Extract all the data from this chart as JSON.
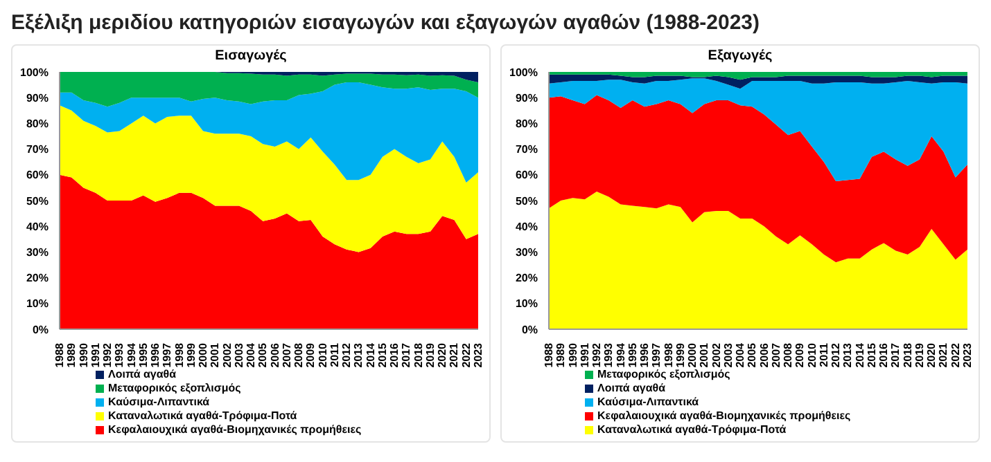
{
  "chart_data": [
    {
      "type": "area",
      "title": "Εξέλιξη μεριδίου κατηγοριών εισαγωγών και εξαγωγών αγαθών (1988-2023)",
      "subtitle": "Εισαγωγές",
      "stacked": true,
      "legend": "bottom",
      "categories": [
        "1988",
        "1989",
        "1990",
        "1991",
        "1992",
        "1993",
        "1994",
        "1995",
        "1996",
        "1997",
        "1998",
        "1999",
        "2000",
        "2001",
        "2002",
        "2003",
        "2004",
        "2005",
        "2006",
        "2007",
        "2008",
        "2009",
        "2010",
        "2011",
        "2012",
        "2013",
        "2014",
        "2015",
        "2016",
        "2017",
        "2018",
        "2019",
        "2020",
        "2021",
        "2022",
        "2023"
      ],
      "ylim": [
        0,
        100
      ],
      "yticks": [
        {
          "value": 0,
          "label": "0%"
        },
        {
          "value": 10,
          "label": "10%"
        },
        {
          "value": 20,
          "label": "20%"
        },
        {
          "value": 30,
          "label": "30%"
        },
        {
          "value": 40,
          "label": "40%"
        },
        {
          "value": 50,
          "label": "50%"
        },
        {
          "value": 60,
          "label": "60%"
        },
        {
          "value": 70,
          "label": "70%"
        },
        {
          "value": 80,
          "label": "80%"
        },
        {
          "value": 90,
          "label": "90%"
        },
        {
          "value": 100,
          "label": "100%"
        }
      ],
      "series": [
        {
          "name": "Κεφαλαιουχικά αγαθά-Βιομηχανικές προμήθειες",
          "color": "#ff0000",
          "values": [
            60,
            59,
            55,
            53,
            50,
            50,
            50,
            52,
            49.5,
            51,
            53,
            53,
            51,
            48,
            48,
            48,
            46,
            42,
            43,
            45,
            42,
            42.5,
            36,
            33,
            31,
            30,
            31.5,
            36,
            38,
            37,
            37,
            38,
            44,
            42.5,
            35,
            37
          ]
        },
        {
          "name": "Καταναλωτικά αγαθά-Τρόφιμα-Ποτά",
          "color": "#ffff00",
          "values": [
            27,
            26,
            26,
            26,
            26.5,
            27,
            30,
            31,
            30.5,
            31.5,
            30,
            30,
            26,
            28,
            28,
            28,
            29,
            30,
            28,
            28,
            28,
            32,
            33,
            31,
            27,
            28,
            28.5,
            31,
            32,
            30,
            27.5,
            28,
            29,
            24.5,
            22,
            24
          ]
        },
        {
          "name": "Καύσιμα-Λιπαντικά",
          "color": "#00b0f0",
          "values": [
            5,
            7,
            8,
            9,
            10,
            11,
            10,
            7,
            10,
            7.5,
            7,
            5.5,
            12.5,
            14,
            13,
            12.5,
            12.5,
            16.5,
            18,
            16,
            21,
            17,
            23.5,
            31,
            38,
            38,
            35,
            27,
            23.5,
            26.5,
            29.5,
            27,
            20.5,
            26.5,
            35.5,
            29
          ]
        },
        {
          "name": "Μεταφορικός εξοπλισμός",
          "color": "#00b050",
          "values": [
            8,
            8,
            11,
            12,
            13.5,
            12,
            10,
            10,
            10,
            10,
            10,
            11.5,
            10.5,
            10,
            10.5,
            11,
            11.8,
            10.5,
            10,
            9.5,
            8,
            7.5,
            6,
            4,
            3.3,
            3.3,
            4.3,
            5,
            5.5,
            5.2,
            5,
            5.5,
            5.2,
            5,
            4.5,
            6
          ]
        },
        {
          "name": "Λοιπά αγαθά",
          "color": "#002060",
          "values": [
            0,
            0,
            0,
            0,
            0,
            0,
            0,
            0,
            0,
            0,
            0,
            0,
            0,
            0,
            0.5,
            0.5,
            0.7,
            1,
            1,
            1.5,
            1,
            1,
            1.5,
            1,
            0.7,
            0.7,
            0.7,
            1,
            1,
            1.3,
            1,
            1.5,
            1.3,
            1.5,
            3,
            4
          ]
        }
      ]
    },
    {
      "type": "area",
      "subtitle": "Εξαγωγές",
      "stacked": true,
      "legend": "bottom",
      "categories": [
        "1988",
        "1989",
        "1990",
        "1991",
        "1992",
        "1993",
        "1994",
        "1995",
        "1996",
        "1997",
        "1998",
        "1999",
        "2000",
        "2001",
        "2002",
        "2003",
        "2004",
        "2005",
        "2006",
        "2007",
        "2008",
        "2009",
        "2010",
        "2011",
        "2012",
        "2013",
        "2014",
        "2015",
        "2016",
        "2017",
        "2018",
        "2019",
        "2020",
        "2021",
        "2022",
        "2023"
      ],
      "ylim": [
        0,
        100
      ],
      "yticks": [
        {
          "value": 0,
          "label": "0%"
        },
        {
          "value": 10,
          "label": "10%"
        },
        {
          "value": 20,
          "label": "20%"
        },
        {
          "value": 30,
          "label": "30%"
        },
        {
          "value": 40,
          "label": "40%"
        },
        {
          "value": 50,
          "label": "50%"
        },
        {
          "value": 60,
          "label": "60%"
        },
        {
          "value": 70,
          "label": "70%"
        },
        {
          "value": 80,
          "label": "80%"
        },
        {
          "value": 90,
          "label": "90%"
        },
        {
          "value": 100,
          "label": "100%"
        }
      ],
      "series": [
        {
          "name": "Καταναλωτικά αγαθά-Τρόφιμα-Ποτά",
          "color": "#ffff00",
          "values": [
            47,
            50,
            51,
            50.5,
            53.5,
            51.5,
            48.5,
            48,
            47.5,
            47,
            48.5,
            47.5,
            41.5,
            45.5,
            46,
            46,
            43,
            43,
            40,
            36,
            33,
            36.5,
            33,
            29,
            26,
            27.5,
            27.5,
            31,
            33.5,
            30.5,
            29,
            32,
            39,
            33,
            27,
            31
          ]
        },
        {
          "name": "Κεφαλαιουχικά αγαθά-Βιομηχανικές προμήθειες",
          "color": "#ff0000",
          "values": [
            43,
            40.5,
            38,
            37,
            37.5,
            37.5,
            37.5,
            41,
            39,
            40.5,
            40.5,
            40,
            42.5,
            42,
            43,
            43,
            44,
            43.5,
            43.5,
            43.5,
            42.5,
            40.5,
            38,
            36,
            31.5,
            30.5,
            31,
            36,
            35.5,
            35.5,
            34.5,
            34,
            36,
            36,
            32,
            33
          ]
        },
        {
          "name": "Καύσιμα-Λιπαντικά",
          "color": "#00b0f0",
          "values": [
            5.5,
            5.5,
            7.5,
            9,
            5.5,
            8,
            11,
            7,
            9,
            9,
            7.5,
            9.5,
            13.5,
            10,
            7.5,
            6,
            6.5,
            10,
            13,
            17,
            21,
            19.5,
            24.5,
            30.5,
            38.5,
            38,
            37.5,
            28.5,
            26.5,
            30,
            33,
            30,
            20.5,
            27,
            37,
            31.5
          ]
        },
        {
          "name": "Λοιπά αγαθά",
          "color": "#002060",
          "values": [
            3.5,
            3,
            2.5,
            2.5,
            2.5,
            2,
            1.5,
            2,
            2.5,
            2,
            2,
            1.5,
            0.5,
            0.5,
            2,
            3,
            3.5,
            1.5,
            1.5,
            1.5,
            2,
            2,
            3,
            3,
            2.5,
            2.5,
            2.5,
            2.5,
            2.5,
            2,
            2,
            2.5,
            2.5,
            2.5,
            2.5,
            3
          ]
        },
        {
          "name": "Μεταφορικός εξοπλισμός",
          "color": "#00b050",
          "values": [
            1,
            1,
            1,
            1,
            1,
            1,
            1.5,
            2,
            2,
            1.5,
            1.5,
            1.5,
            2,
            2,
            1.5,
            2,
            3,
            2,
            2,
            2,
            1.5,
            1.5,
            1.5,
            1.5,
            1.5,
            1.5,
            1.5,
            2,
            2,
            2,
            1.5,
            1.5,
            2,
            1.5,
            1.5,
            1.5
          ]
        }
      ]
    }
  ]
}
